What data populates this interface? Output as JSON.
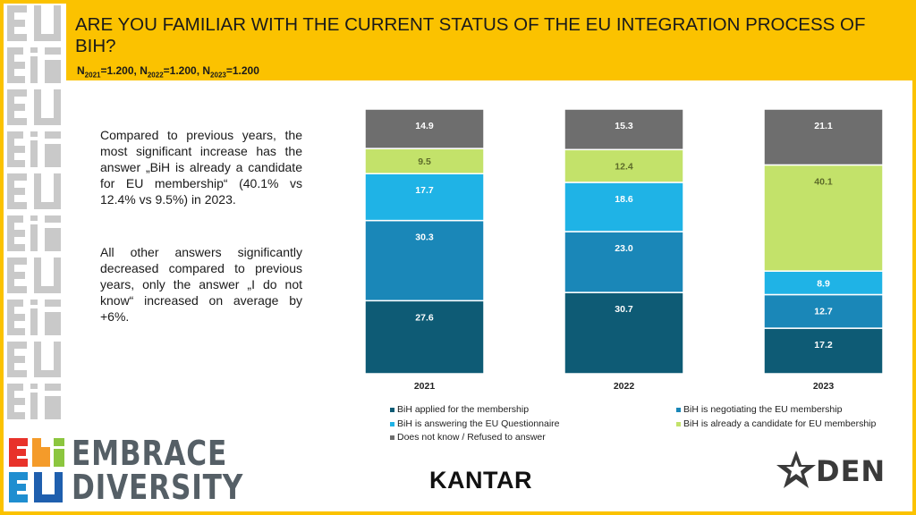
{
  "header": {
    "title": "ARE YOU FAMILIAR WITH THE CURRENT STATUS OF THE EU INTEGRATION PROCESS OF BIH?",
    "sample": {
      "n_label": "N",
      "y2021": "2021",
      "v2021": "=1.200, ",
      "y2022": "2022",
      "v2022": "=1.200, ",
      "y2023": "2023",
      "v2023": "=1.200"
    }
  },
  "text": {
    "p1": "Compared to previous years, the most significant increase has the answer „BiH is already a candidate for EU membership“ (40.1% vs 12.4% vs 9.5%) in 2023.",
    "p2": "All other answers significantly decreased compared to previous years, only the answer „I do not know“ increased on average by +6%."
  },
  "chart_data": {
    "type": "bar",
    "stacked": true,
    "categories": [
      "2021",
      "2022",
      "2023"
    ],
    "series": [
      {
        "name": "BiH applied for the membership",
        "color": "#0e5b75",
        "values": [
          27.6,
          30.7,
          17.2
        ]
      },
      {
        "name": "BiH is negotiating the EU membership",
        "color": "#1a87b8",
        "values": [
          30.3,
          23.0,
          12.7
        ]
      },
      {
        "name": "BiH is answering the EU Questionnaire",
        "color": "#1fb3e6",
        "values": [
          17.7,
          18.6,
          8.9
        ]
      },
      {
        "name": "BiH is already a candidate for EU membership",
        "color": "#c3e26a",
        "values": [
          9.5,
          12.4,
          40.1
        ]
      },
      {
        "name": "Does not know / Refused to answer",
        "color": "#6e6e6e",
        "values": [
          14.9,
          15.3,
          21.1
        ]
      }
    ]
  },
  "branding": {
    "embrace_line1": "EMBRACE",
    "embrace_line2": "DIVERSITY",
    "kantar": "KANTAR",
    "right_logo": "DEN"
  }
}
